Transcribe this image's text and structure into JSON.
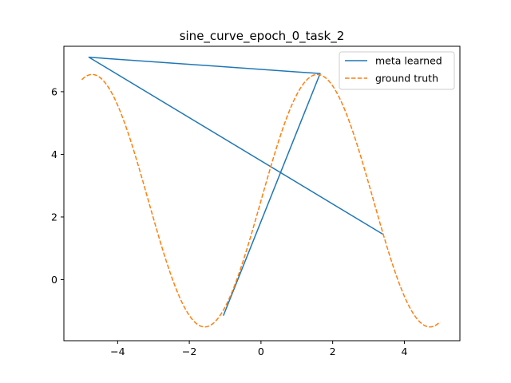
{
  "chart_data": {
    "type": "line",
    "title": "sine_curve_epoch_0_task_2",
    "xlabel": "",
    "ylabel": "",
    "xlim": [
      -5.5,
      5.55
    ],
    "ylim": [
      -1.95,
      7.45
    ],
    "xticks": [
      -4,
      -2,
      0,
      2,
      4
    ],
    "yticks": [
      0,
      2,
      4,
      6
    ],
    "xtick_labels": [
      "−4",
      "−2",
      "0",
      "2",
      "4"
    ],
    "ytick_labels": [
      "0",
      "2",
      "4",
      "6"
    ],
    "grid": false,
    "legend_position": "top-right",
    "series": [
      {
        "name": "meta learned",
        "style": "solid",
        "color": "#1f77b4",
        "x": [
          -1.05,
          1.65,
          -4.8,
          3.4
        ],
        "y": [
          -1.15,
          6.58,
          7.1,
          1.45
        ]
      },
      {
        "name": "ground truth",
        "style": "dashed",
        "color": "#ff7f0e",
        "function": {
          "form": "amplitude*sin(x + phase) + offset",
          "amplitude": 4.03,
          "phase": 0.0,
          "offset": 2.52,
          "x_range": [
            -5.0,
            5.0
          ],
          "samples": 200
        }
      }
    ]
  }
}
